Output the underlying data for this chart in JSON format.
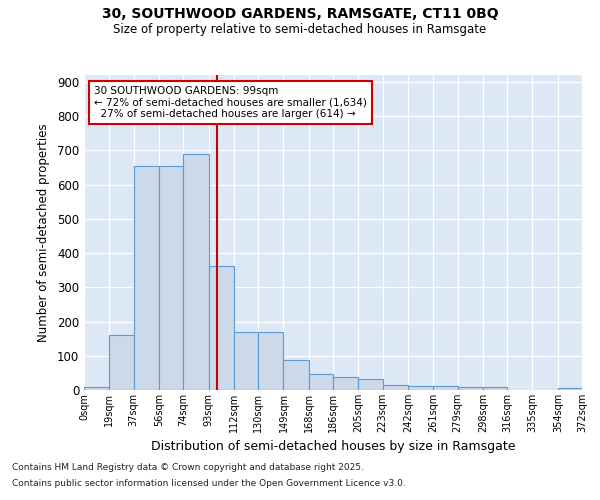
{
  "title1": "30, SOUTHWOOD GARDENS, RAMSGATE, CT11 0BQ",
  "title2": "Size of property relative to semi-detached houses in Ramsgate",
  "xlabel": "Distribution of semi-detached houses by size in Ramsgate",
  "ylabel": "Number of semi-detached properties",
  "footnote1": "Contains HM Land Registry data © Crown copyright and database right 2025.",
  "footnote2": "Contains public sector information licensed under the Open Government Licence v3.0.",
  "bar_left_edges": [
    0,
    19,
    37,
    56,
    74,
    93,
    112,
    130,
    149,
    168,
    186,
    205,
    223,
    242,
    261,
    279,
    298,
    316,
    335,
    354
  ],
  "bar_widths": [
    19,
    18,
    19,
    18,
    19,
    19,
    18,
    19,
    19,
    18,
    19,
    18,
    19,
    19,
    18,
    19,
    18,
    19,
    19,
    18
  ],
  "bar_heights": [
    8,
    160,
    655,
    655,
    690,
    363,
    170,
    170,
    87,
    48,
    37,
    32,
    15,
    13,
    13,
    10,
    8,
    0,
    0,
    5
  ],
  "bar_color": "#ccd9e8",
  "bar_edge_color": "#5b9bd5",
  "vline_x": 99,
  "vline_color": "#cc0000",
  "annotation_text_line1": "30 SOUTHWOOD GARDENS: 99sqm",
  "annotation_text_line2": "← 72% of semi-detached houses are smaller (1,634)",
  "annotation_text_line3": "  27% of semi-detached houses are larger (614) →",
  "annotation_box_color": "#ffffff",
  "annotation_box_edge": "#cc0000",
  "ylim": [
    0,
    920
  ],
  "yticks": [
    0,
    100,
    200,
    300,
    400,
    500,
    600,
    700,
    800,
    900
  ],
  "bg_color": "#dce8f5",
  "tick_labels": [
    "0sqm",
    "19sqm",
    "37sqm",
    "56sqm",
    "74sqm",
    "93sqm",
    "112sqm",
    "130sqm",
    "149sqm",
    "168sqm",
    "186sqm",
    "205sqm",
    "223sqm",
    "242sqm",
    "261sqm",
    "279sqm",
    "298sqm",
    "316sqm",
    "335sqm",
    "354sqm",
    "372sqm"
  ],
  "tick_positions": [
    0,
    19,
    37,
    56,
    74,
    93,
    112,
    130,
    149,
    168,
    186,
    205,
    223,
    242,
    261,
    279,
    298,
    316,
    335,
    354,
    372
  ]
}
